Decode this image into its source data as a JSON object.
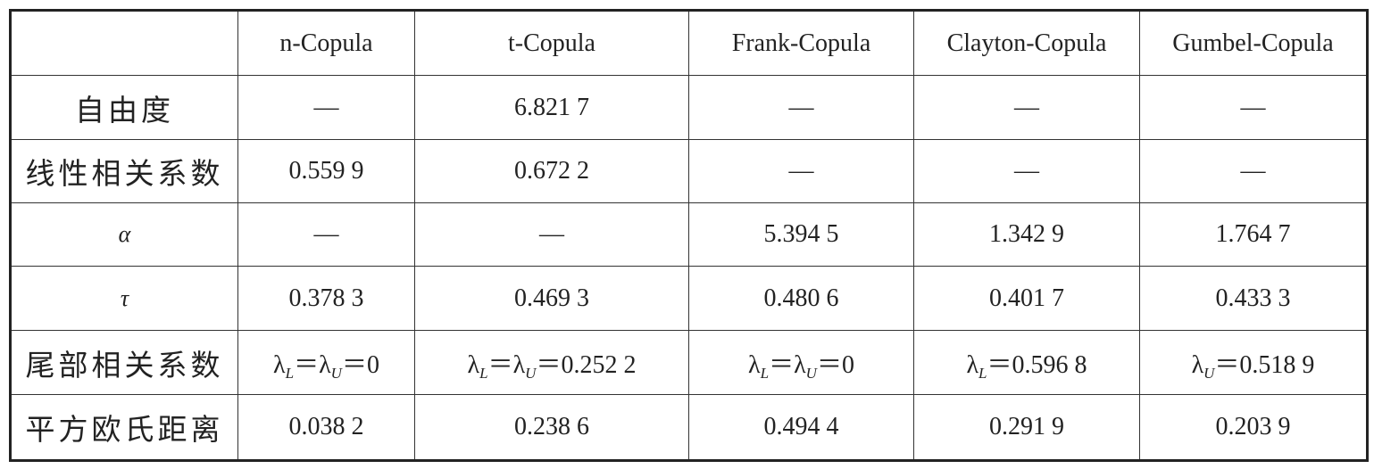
{
  "table": {
    "header": [
      "n-Copula",
      "t-Copula",
      "Frank-Copula",
      "Clayton-Copula",
      "Gumbel-Copula"
    ],
    "rows": [
      {
        "label": "自由度",
        "cells": [
          "—",
          "6.821 7",
          "—",
          "—",
          "—"
        ]
      },
      {
        "label": "线性相关系数",
        "cells": [
          "0.559 9",
          "0.672 2",
          "—",
          "—",
          "—"
        ]
      },
      {
        "label": "α",
        "italic": true,
        "cells": [
          "—",
          "—",
          "5.394 5",
          "1.342 9",
          "1.764 7"
        ]
      },
      {
        "label": "τ",
        "italic": true,
        "cells": [
          "0.378 3",
          "0.469 3",
          "0.480 6",
          "0.401 7",
          "0.433 3"
        ]
      },
      {
        "label": "尾部相关系数",
        "cells": [
          [
            {
              "t": "λ"
            },
            {
              "t": "L",
              "sub": true
            },
            {
              "t": "＝λ"
            },
            {
              "t": "U",
              "sub": true
            },
            {
              "t": "＝0"
            }
          ],
          [
            {
              "t": "λ"
            },
            {
              "t": "L",
              "sub": true
            },
            {
              "t": "＝λ"
            },
            {
              "t": "U",
              "sub": true
            },
            {
              "t": "＝0.252 2"
            }
          ],
          [
            {
              "t": "λ"
            },
            {
              "t": "L",
              "sub": true
            },
            {
              "t": "＝λ"
            },
            {
              "t": "U",
              "sub": true
            },
            {
              "t": "＝0"
            }
          ],
          [
            {
              "t": "λ"
            },
            {
              "t": "L",
              "sub": true
            },
            {
              "t": "＝0.596 8"
            }
          ],
          [
            {
              "t": "λ"
            },
            {
              "t": "U",
              "sub": true
            },
            {
              "t": "＝0.518 9"
            }
          ]
        ]
      },
      {
        "label": "平方欧氏距离",
        "cells": [
          "0.038 2",
          "0.238 6",
          "0.494 4",
          "0.291 9",
          "0.203 9"
        ]
      }
    ]
  }
}
